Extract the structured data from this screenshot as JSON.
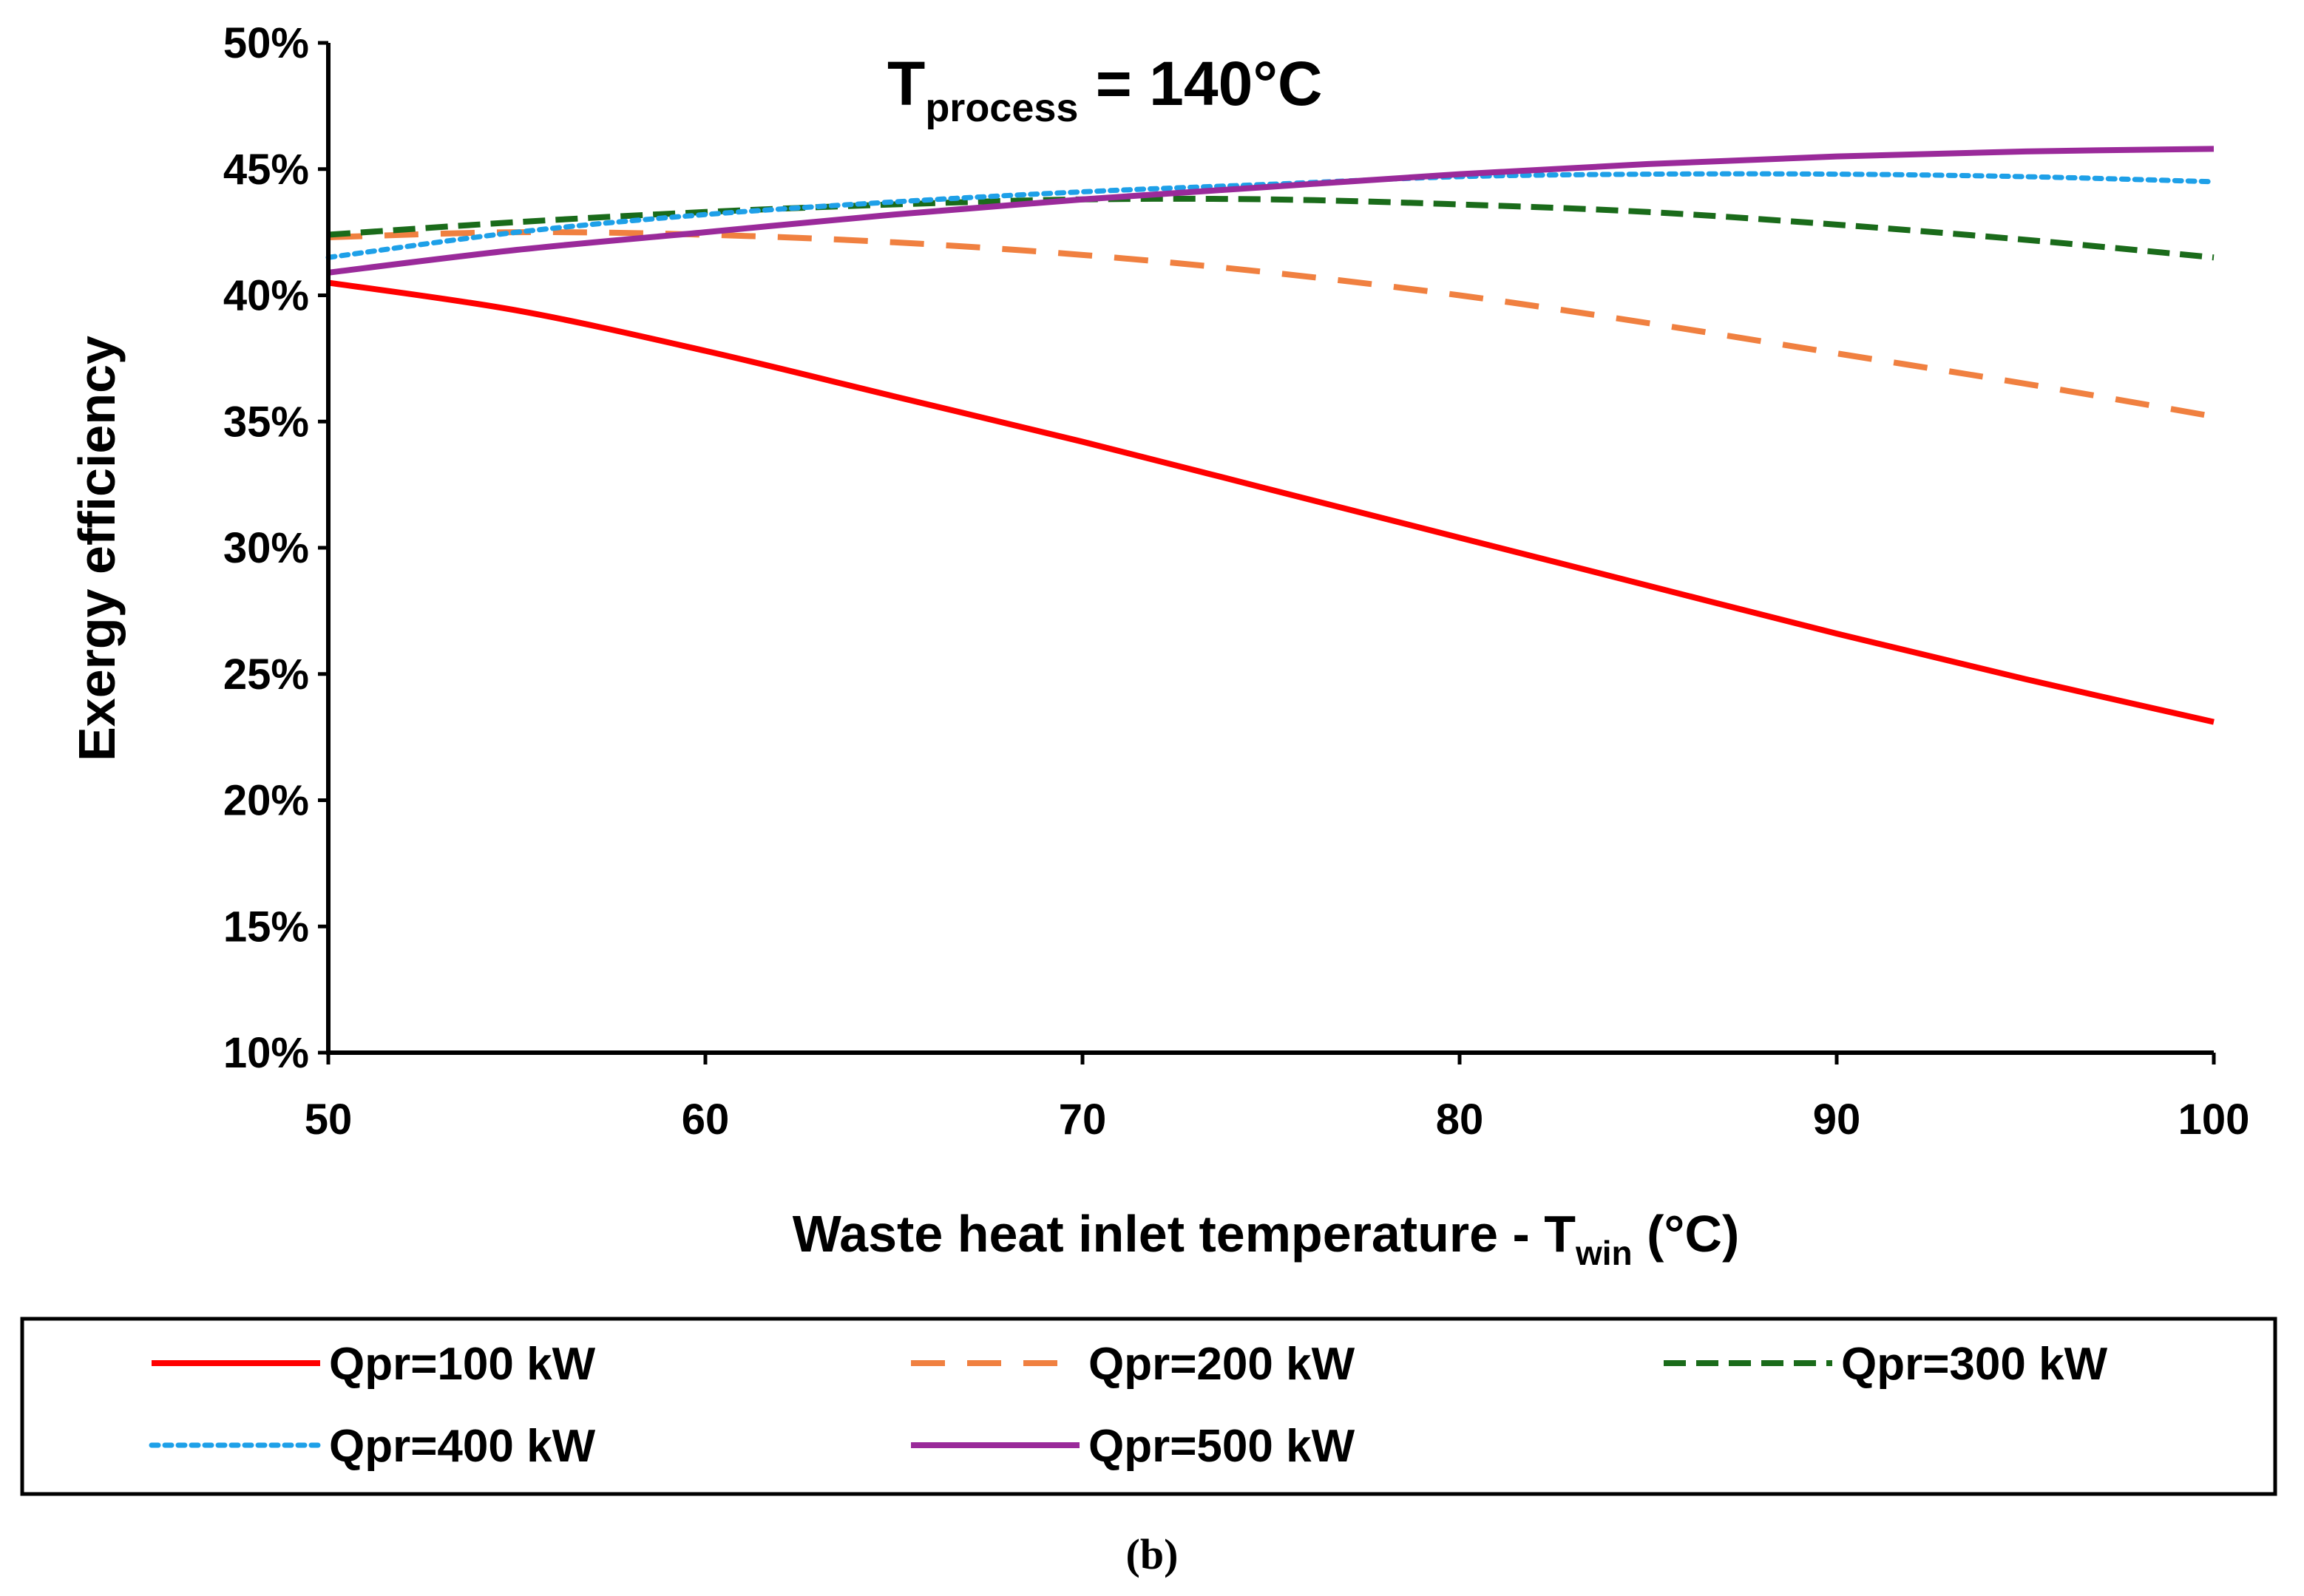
{
  "chart_data": {
    "type": "line",
    "title": {
      "main": "T",
      "subscript": "process",
      "rest": " = 140°C"
    },
    "xlabel": {
      "main": "Waste heat inlet temperature - T",
      "subscript": "win",
      "rest": " (°C)"
    },
    "ylabel": "Exergy efficiency",
    "xlim": [
      50,
      100
    ],
    "ylim": [
      10,
      50
    ],
    "x_ticks": [
      50,
      60,
      70,
      80,
      90,
      100
    ],
    "y_ticks": [
      10,
      15,
      20,
      25,
      30,
      35,
      40,
      45,
      50
    ],
    "y_tick_labels": [
      "10%",
      "15%",
      "20%",
      "25%",
      "30%",
      "35%",
      "40%",
      "45%",
      "50%"
    ],
    "x": [
      50,
      55,
      60,
      65,
      70,
      75,
      80,
      85,
      90,
      95,
      100
    ],
    "series": [
      {
        "name": "Qpr=100 kW",
        "color": "#ff0000",
        "style": "solid",
        "values": [
          40.5,
          39.4,
          37.8,
          36.0,
          34.2,
          32.3,
          30.4,
          28.5,
          26.6,
          24.8,
          23.1
        ]
      },
      {
        "name": "Qpr=200 kW",
        "color": "#f08040",
        "style": "dashed",
        "values": [
          42.3,
          42.5,
          42.4,
          42.1,
          41.6,
          40.9,
          40.0,
          38.9,
          37.7,
          36.5,
          35.2
        ]
      },
      {
        "name": "Qpr=300 kW",
        "color": "#1a6b1a",
        "style": "short-dashed",
        "values": [
          42.4,
          42.9,
          43.3,
          43.6,
          43.8,
          43.8,
          43.6,
          43.3,
          42.8,
          42.2,
          41.5
        ]
      },
      {
        "name": "Qpr=400 kW",
        "color": "#1ea0e8",
        "style": "dotted",
        "values": [
          41.5,
          42.5,
          43.2,
          43.7,
          44.1,
          44.4,
          44.7,
          44.8,
          44.8,
          44.7,
          44.5
        ]
      },
      {
        "name": "Qpr=500 kW",
        "color": "#9a2a9a",
        "style": "solid",
        "values": [
          40.9,
          41.8,
          42.5,
          43.2,
          43.8,
          44.3,
          44.8,
          45.2,
          45.5,
          45.7,
          45.8
        ]
      }
    ],
    "legend_position": "bottom",
    "caption": "(b)"
  }
}
